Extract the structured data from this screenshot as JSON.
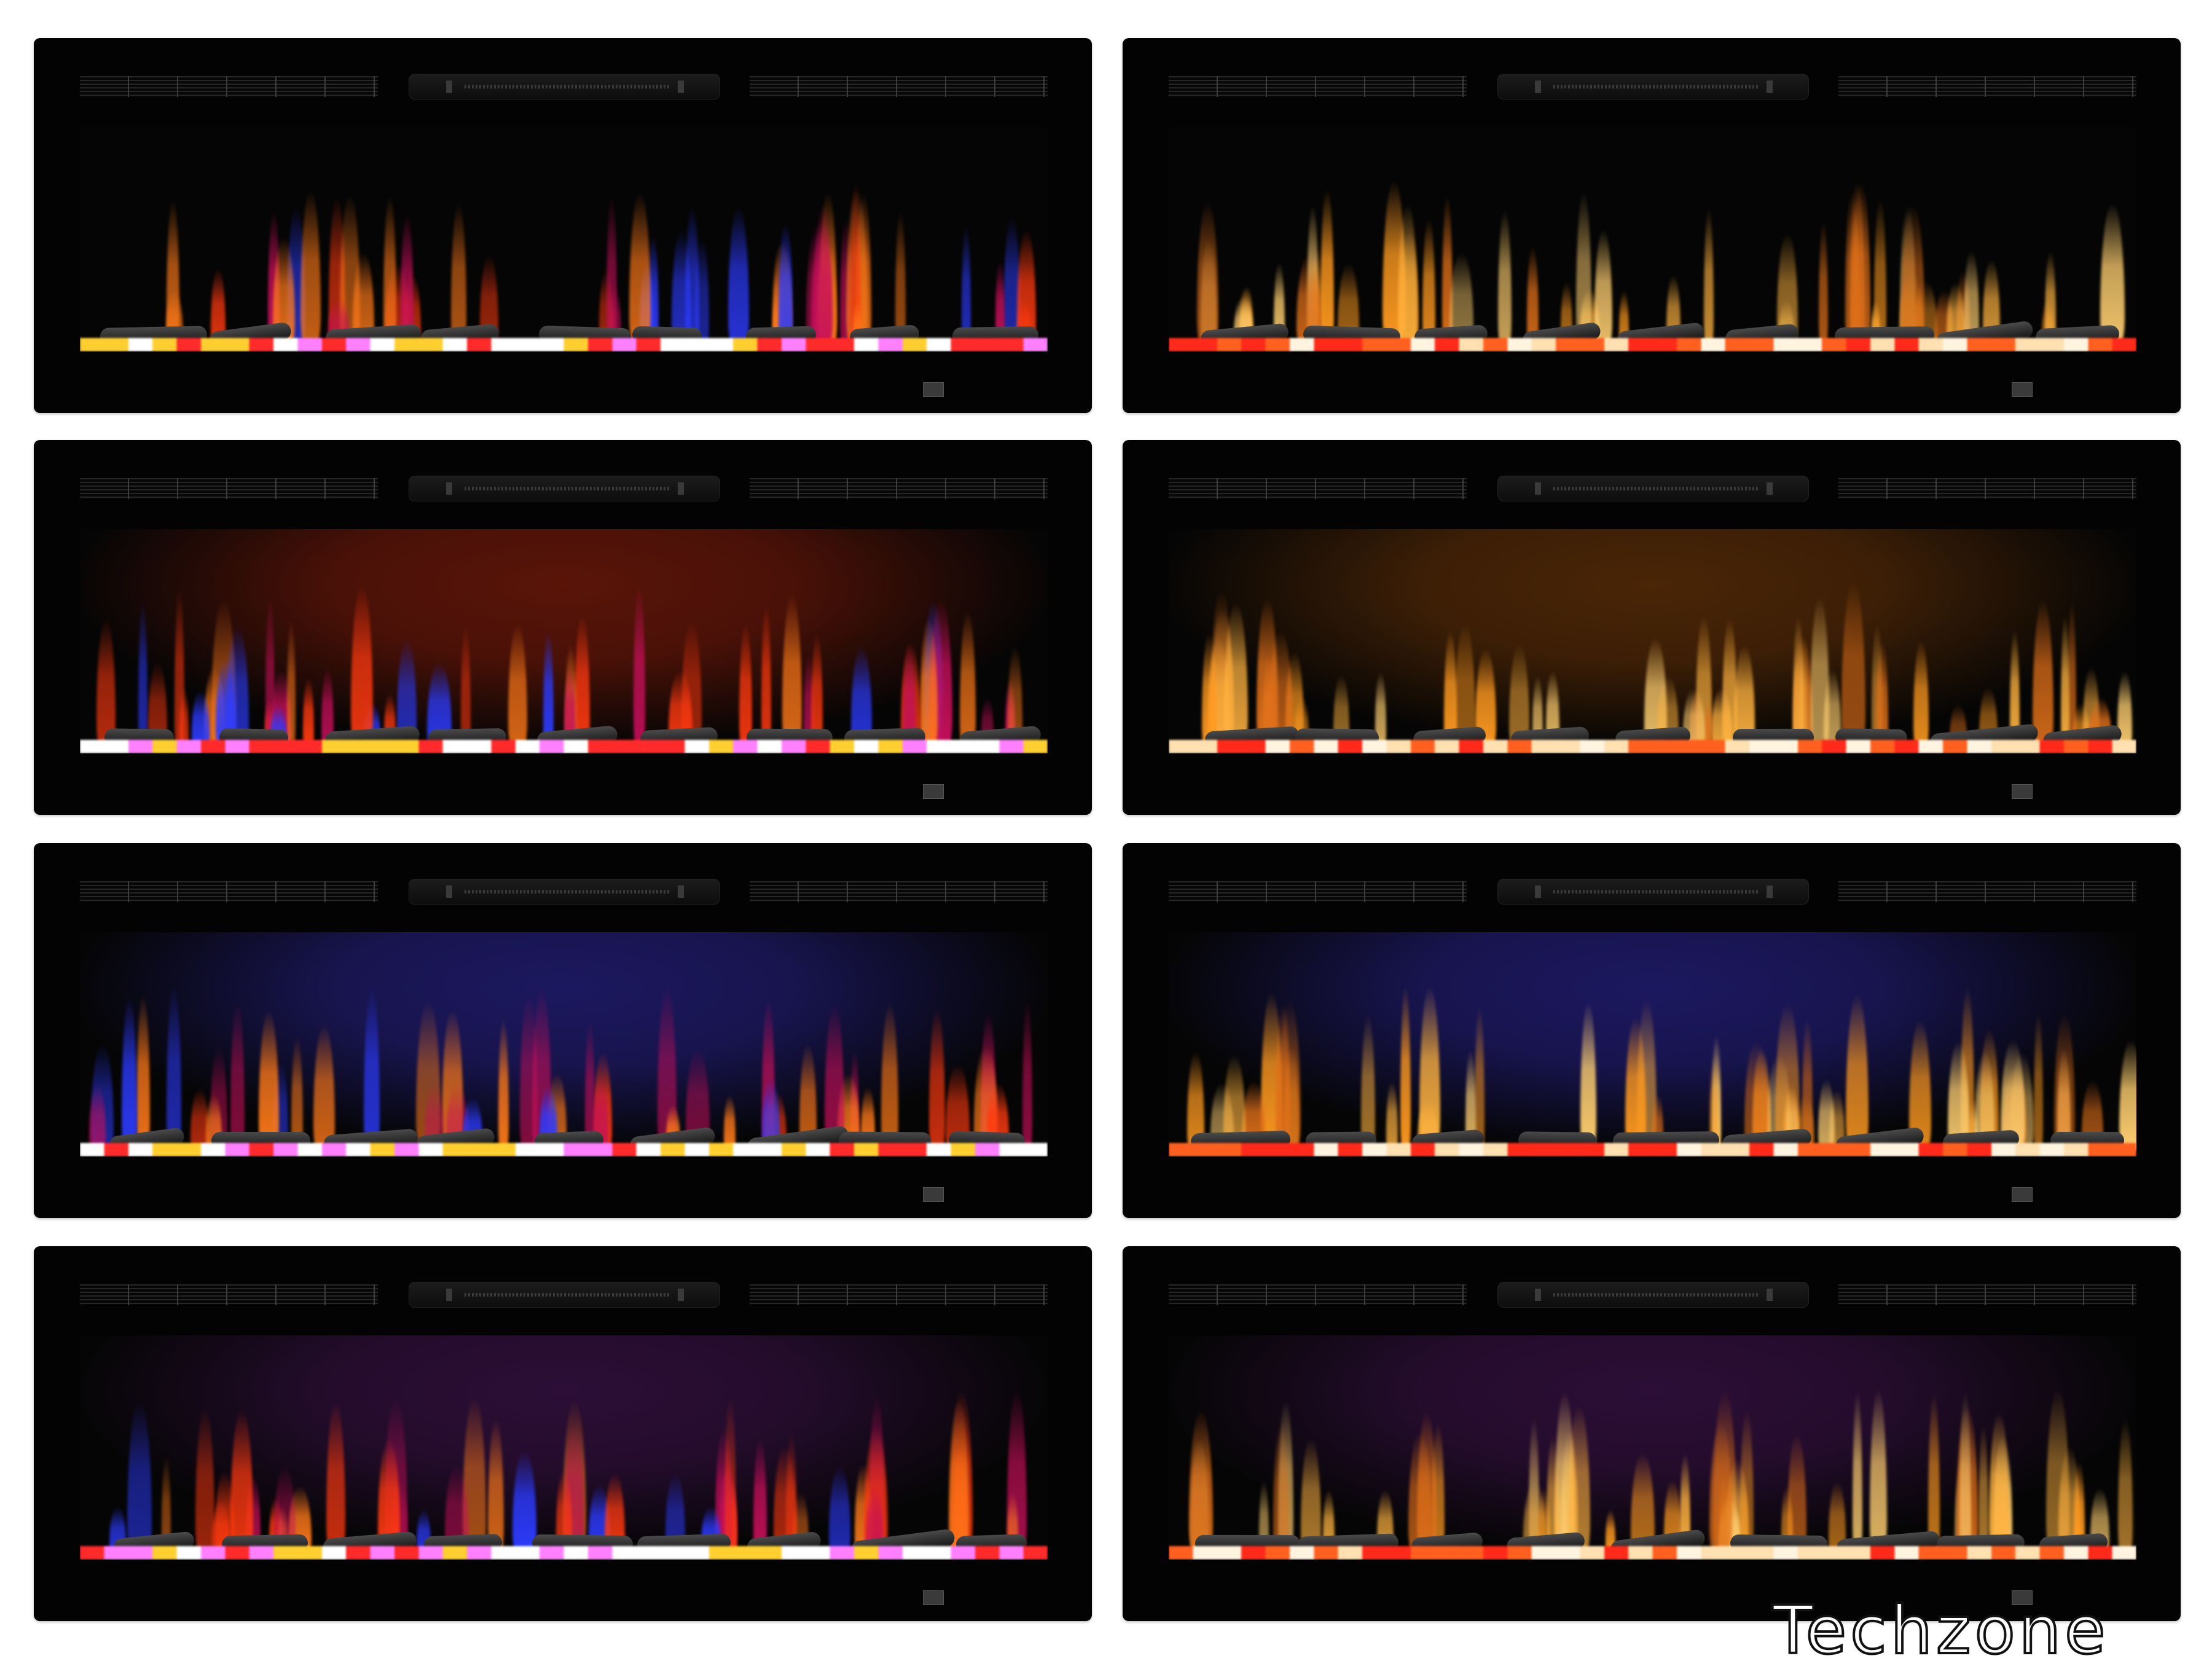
{
  "brand": {
    "watermark_text": "Techzone",
    "color": "#111111"
  },
  "grid": {
    "rows": 4,
    "columns": 2
  },
  "fireplaces": [
    {
      "flame_style": "multicolor",
      "background_glow": "none",
      "glow_color": "#000000"
    },
    {
      "flame_style": "amber",
      "background_glow": "none",
      "glow_color": "#000000"
    },
    {
      "flame_style": "multicolor",
      "background_glow": "red",
      "glow_color": "#5a1408"
    },
    {
      "flame_style": "amber",
      "background_glow": "orange",
      "glow_color": "#4a2506"
    },
    {
      "flame_style": "multicolor",
      "background_glow": "blue",
      "glow_color": "#1c1860"
    },
    {
      "flame_style": "amber",
      "background_glow": "blue",
      "glow_color": "#1c1860"
    },
    {
      "flame_style": "multicolor",
      "background_glow": "purple",
      "glow_color": "#2c0e36"
    },
    {
      "flame_style": "amber",
      "background_glow": "purple",
      "glow_color": "#2c0e36"
    }
  ],
  "palette": {
    "multicolor_flames": [
      "#ff3a10",
      "#2d3cff",
      "#ff7a1a",
      "#c6105a"
    ],
    "amber_flames": [
      "#ff9a20",
      "#ffb340",
      "#e0701a",
      "#ffcf70"
    ],
    "embers_multicolor": [
      "#ff2a2a",
      "#ff80ff",
      "#ffcf30",
      "#ffffff"
    ],
    "embers_amber": [
      "#ff2a1a",
      "#ffe0b0",
      "#ff6020",
      "#fff4e0"
    ]
  }
}
